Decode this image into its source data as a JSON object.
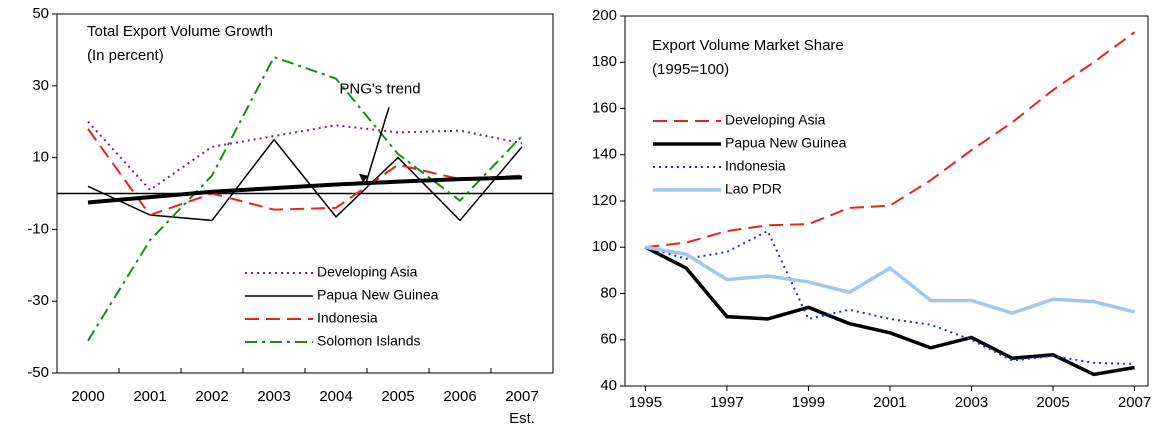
{
  "chart_data": [
    {
      "type": "line",
      "title": "Total Export Volume Growth",
      "subtitle": "(In percent)",
      "categories": [
        "2000",
        "2001",
        "2002",
        "2003",
        "2004",
        "2005",
        "2006",
        "2007"
      ],
      "x_annotation": "Est.",
      "ylim": [
        -50,
        50
      ],
      "yticks": [
        -50,
        -30,
        -10,
        10,
        30,
        50
      ],
      "zero_line": true,
      "series": [
        {
          "name": "Developing Asia",
          "color": "#7f1f8f",
          "dash": "dotted",
          "width": 2,
          "values": [
            20,
            1,
            13,
            16,
            19,
            17,
            17.5,
            14
          ]
        },
        {
          "name": "Papua New Guinea",
          "color": "#000000",
          "dash": "solid",
          "width": 1.5,
          "values": [
            2,
            -6,
            -7.5,
            15,
            -6.5,
            10,
            -7.5,
            13
          ]
        },
        {
          "name": "Indonesia",
          "color": "#e8231c",
          "dash": "dashed",
          "width": 2,
          "values": [
            18,
            -6,
            0,
            -4.5,
            -4,
            8,
            4,
            5
          ]
        },
        {
          "name": "Solomon Islands",
          "color": "#1a8a1a",
          "dash": "dashdot",
          "width": 2,
          "values": [
            -41,
            -13,
            5,
            38,
            32,
            11,
            -2,
            16
          ]
        }
      ],
      "trend": {
        "label": "PNG's trend",
        "color": "#000000",
        "values": [
          -2.5,
          -1,
          0.5,
          1.5,
          2.5,
          3.3,
          4,
          4.5
        ]
      },
      "legend": "lower-right"
    },
    {
      "type": "line",
      "title": "Export Volume Market Share",
      "subtitle": "(1995=100)",
      "x": [
        1995,
        1996,
        1997,
        1998,
        1999,
        2000,
        2001,
        2002,
        2003,
        2004,
        2005,
        2006,
        2007
      ],
      "xlim": [
        1994.5,
        2007.33
      ],
      "xticks": [
        1995,
        1997,
        1999,
        2001,
        2003,
        2005,
        2007
      ],
      "ylim": [
        40,
        200
      ],
      "yticks": [
        40,
        60,
        80,
        100,
        120,
        140,
        160,
        180,
        200
      ],
      "series": [
        {
          "name": "Developing Asia",
          "color": "#e8231c",
          "dash": "dashed",
          "width": 2,
          "values": [
            100,
            102,
            107,
            109.5,
            110,
            117,
            118,
            129,
            142,
            154,
            168,
            180,
            193
          ]
        },
        {
          "name": "Papua New Guinea",
          "color": "#000000",
          "dash": "solid",
          "width": 3.5,
          "values": [
            100,
            91,
            70,
            69,
            74,
            67,
            63,
            56.5,
            61,
            52,
            53.5,
            45,
            48
          ]
        },
        {
          "name": "Indonesia",
          "color": "#1f2fd0",
          "dash": "dotted",
          "width": 2,
          "values": [
            100,
            95,
            98,
            107,
            69,
            73,
            69,
            66.5,
            60,
            51,
            53,
            50,
            49.5
          ]
        },
        {
          "name": "Lao PDR",
          "color": "#9cc8f2",
          "dash": "solid",
          "width": 3.5,
          "values": [
            100,
            97,
            86,
            87.5,
            85,
            80.5,
            91,
            77,
            77,
            71.5,
            77.5,
            76.5,
            72
          ]
        }
      ],
      "legend": "upper-left"
    }
  ]
}
